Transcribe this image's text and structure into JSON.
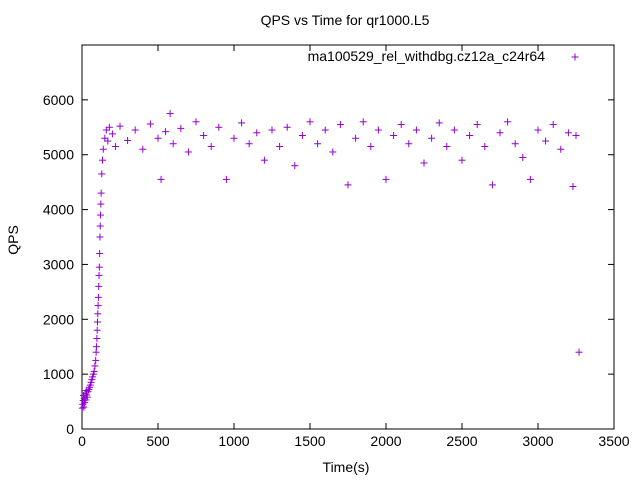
{
  "chart_data": {
    "type": "scatter",
    "title": "QPS vs Time for qr1000.L5",
    "xlabel": "Time(s)",
    "ylabel": "QPS",
    "xlim": [
      0,
      3500
    ],
    "ylim": [
      0,
      7000
    ],
    "xticks": [
      0,
      500,
      1000,
      1500,
      2000,
      2500,
      3000,
      3500
    ],
    "yticks": [
      0,
      1000,
      2000,
      3000,
      4000,
      5000,
      6000
    ],
    "grid": false,
    "legend_position": "top-right",
    "series": [
      {
        "name": "ma100529_rel_withdbg.cz12a_c24r64",
        "color": "#9400d3",
        "marker": "plus",
        "points": [
          [
            2,
            380
          ],
          [
            5,
            450
          ],
          [
            8,
            520
          ],
          [
            10,
            610
          ],
          [
            12,
            400
          ],
          [
            15,
            560
          ],
          [
            18,
            480
          ],
          [
            20,
            650
          ],
          [
            25,
            530
          ],
          [
            28,
            700
          ],
          [
            30,
            620
          ],
          [
            35,
            580
          ],
          [
            40,
            680
          ],
          [
            45,
            720
          ],
          [
            50,
            760
          ],
          [
            55,
            800
          ],
          [
            60,
            850
          ],
          [
            65,
            900
          ],
          [
            70,
            950
          ],
          [
            75,
            1000
          ],
          [
            80,
            1050
          ],
          [
            85,
            1150
          ],
          [
            90,
            1250
          ],
          [
            93,
            1400
          ],
          [
            95,
            1500
          ],
          [
            98,
            1650
          ],
          [
            100,
            1800
          ],
          [
            102,
            1950
          ],
          [
            104,
            2100
          ],
          [
            106,
            2250
          ],
          [
            108,
            2400
          ],
          [
            110,
            2600
          ],
          [
            112,
            2800
          ],
          [
            114,
            2950
          ],
          [
            116,
            3200
          ],
          [
            118,
            3500
          ],
          [
            120,
            3700
          ],
          [
            122,
            3900
          ],
          [
            124,
            4100
          ],
          [
            126,
            4300
          ],
          [
            130,
            4650
          ],
          [
            135,
            4900
          ],
          [
            140,
            5100
          ],
          [
            150,
            5300
          ],
          [
            160,
            5450
          ],
          [
            170,
            5250
          ],
          [
            180,
            5500
          ],
          [
            200,
            5380
          ],
          [
            220,
            5150
          ],
          [
            250,
            5520
          ],
          [
            300,
            5260
          ],
          [
            350,
            5450
          ],
          [
            400,
            5100
          ],
          [
            450,
            5560
          ],
          [
            500,
            5300
          ],
          [
            520,
            4550
          ],
          [
            550,
            5420
          ],
          [
            580,
            5750
          ],
          [
            600,
            5200
          ],
          [
            650,
            5480
          ],
          [
            700,
            5050
          ],
          [
            750,
            5600
          ],
          [
            800,
            5350
          ],
          [
            850,
            5150
          ],
          [
            900,
            5500
          ],
          [
            950,
            4550
          ],
          [
            1000,
            5300
          ],
          [
            1050,
            5580
          ],
          [
            1100,
            5200
          ],
          [
            1150,
            5400
          ],
          [
            1200,
            4900
          ],
          [
            1250,
            5450
          ],
          [
            1300,
            5150
          ],
          [
            1350,
            5500
          ],
          [
            1400,
            4800
          ],
          [
            1450,
            5350
          ],
          [
            1500,
            5600
          ],
          [
            1550,
            5200
          ],
          [
            1600,
            5450
          ],
          [
            1650,
            5050
          ],
          [
            1700,
            5550
          ],
          [
            1750,
            4450
          ],
          [
            1800,
            5300
          ],
          [
            1850,
            5600
          ],
          [
            1900,
            5150
          ],
          [
            1950,
            5450
          ],
          [
            2000,
            4550
          ],
          [
            2050,
            5350
          ],
          [
            2100,
            5550
          ],
          [
            2150,
            5200
          ],
          [
            2200,
            5450
          ],
          [
            2250,
            4850
          ],
          [
            2300,
            5300
          ],
          [
            2350,
            5580
          ],
          [
            2400,
            5150
          ],
          [
            2450,
            5450
          ],
          [
            2500,
            4900
          ],
          [
            2550,
            5350
          ],
          [
            2600,
            5550
          ],
          [
            2650,
            5150
          ],
          [
            2700,
            4450
          ],
          [
            2750,
            5400
          ],
          [
            2800,
            5600
          ],
          [
            2850,
            5200
          ],
          [
            2900,
            4950
          ],
          [
            2950,
            4550
          ],
          [
            3000,
            5450
          ],
          [
            3050,
            5250
          ],
          [
            3100,
            5550
          ],
          [
            3150,
            5100
          ],
          [
            3200,
            5400
          ],
          [
            3230,
            4420
          ],
          [
            3250,
            5350
          ],
          [
            3270,
            1400
          ]
        ]
      }
    ]
  }
}
